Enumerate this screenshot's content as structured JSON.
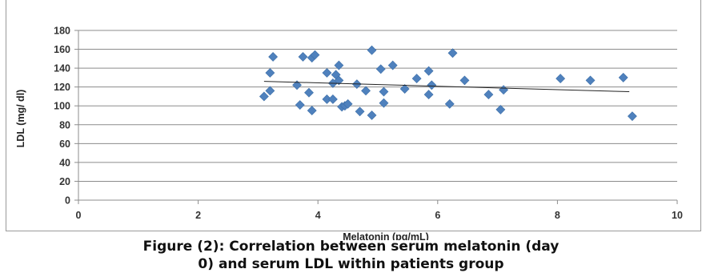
{
  "chart_data": {
    "type": "scatter",
    "title": "",
    "xlabel": "Melatonin (pg/mL)",
    "ylabel": "LDL (mg/ dl)",
    "xlim": [
      0,
      10
    ],
    "ylim": [
      0,
      180
    ],
    "x_ticks": [
      0,
      2,
      4,
      6,
      8,
      10
    ],
    "y_ticks": [
      0,
      20,
      40,
      60,
      80,
      100,
      120,
      140,
      160,
      180
    ],
    "grid": "horizontal",
    "legend": "none",
    "marker_color": "#4f81bd",
    "trendline_color": "#222222",
    "trendline": {
      "x": [
        3.1,
        9.2
      ],
      "y": [
        126,
        115
      ]
    },
    "points": [
      {
        "x": 3.1,
        "y": 110
      },
      {
        "x": 3.2,
        "y": 116
      },
      {
        "x": 3.2,
        "y": 135
      },
      {
        "x": 3.25,
        "y": 152
      },
      {
        "x": 3.65,
        "y": 122
      },
      {
        "x": 3.7,
        "y": 101
      },
      {
        "x": 3.75,
        "y": 152
      },
      {
        "x": 3.85,
        "y": 114
      },
      {
        "x": 3.9,
        "y": 95
      },
      {
        "x": 3.9,
        "y": 151
      },
      {
        "x": 3.95,
        "y": 154
      },
      {
        "x": 4.15,
        "y": 107
      },
      {
        "x": 4.15,
        "y": 135
      },
      {
        "x": 4.25,
        "y": 107
      },
      {
        "x": 4.25,
        "y": 124
      },
      {
        "x": 4.3,
        "y": 133
      },
      {
        "x": 4.35,
        "y": 127
      },
      {
        "x": 4.35,
        "y": 143
      },
      {
        "x": 4.4,
        "y": 99
      },
      {
        "x": 4.45,
        "y": 100
      },
      {
        "x": 4.5,
        "y": 102
      },
      {
        "x": 4.65,
        "y": 123
      },
      {
        "x": 4.7,
        "y": 94
      },
      {
        "x": 4.8,
        "y": 116
      },
      {
        "x": 4.9,
        "y": 90
      },
      {
        "x": 4.9,
        "y": 159
      },
      {
        "x": 5.05,
        "y": 139
      },
      {
        "x": 5.1,
        "y": 103
      },
      {
        "x": 5.1,
        "y": 115
      },
      {
        "x": 5.25,
        "y": 143
      },
      {
        "x": 5.45,
        "y": 118
      },
      {
        "x": 5.65,
        "y": 129
      },
      {
        "x": 5.85,
        "y": 112
      },
      {
        "x": 5.85,
        "y": 137
      },
      {
        "x": 5.9,
        "y": 122
      },
      {
        "x": 6.2,
        "y": 102
      },
      {
        "x": 6.25,
        "y": 156
      },
      {
        "x": 6.45,
        "y": 127
      },
      {
        "x": 6.85,
        "y": 112
      },
      {
        "x": 7.05,
        "y": 96
      },
      {
        "x": 7.1,
        "y": 117
      },
      {
        "x": 8.05,
        "y": 129
      },
      {
        "x": 8.55,
        "y": 127
      },
      {
        "x": 9.1,
        "y": 130
      },
      {
        "x": 9.25,
        "y": 89
      }
    ]
  },
  "caption": {
    "line1": "Figure (2): Correlation between serum melatonin (day",
    "line2": "0) and serum LDL within patients group"
  }
}
